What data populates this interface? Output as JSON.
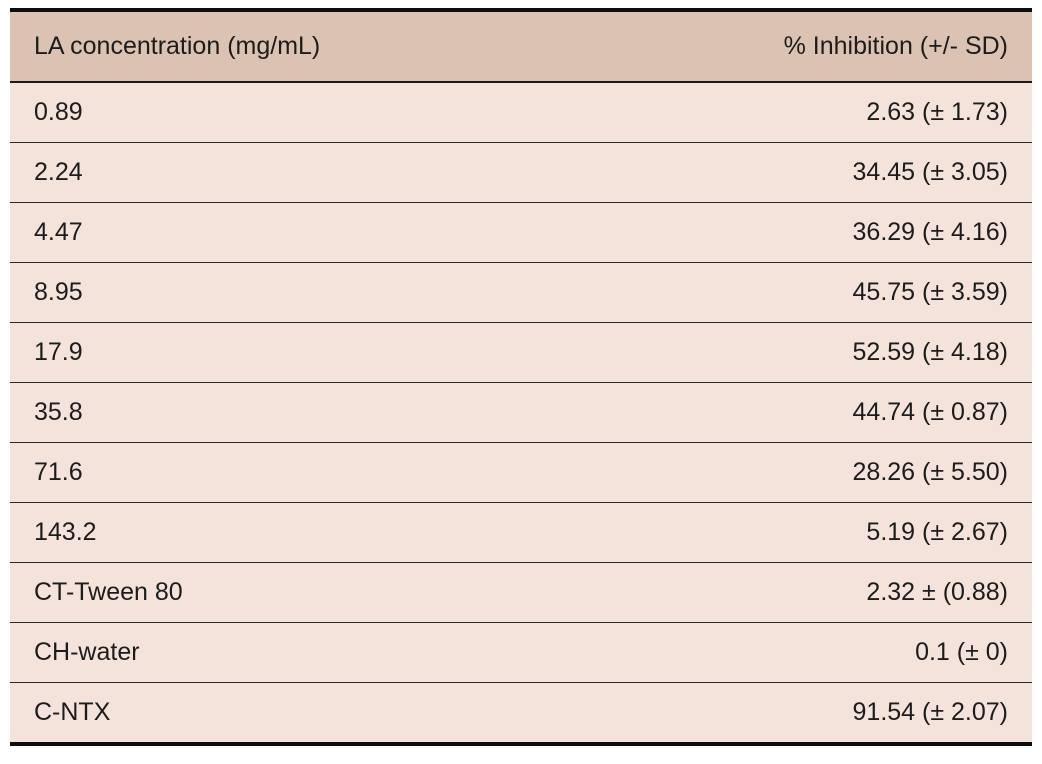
{
  "table": {
    "headers": [
      "LA concentration (mg/mL)",
      "% Inhibition (+/- SD)"
    ],
    "rows": [
      [
        "0.89",
        "2.63 (± 1.73)"
      ],
      [
        "2.24",
        "34.45 (± 3.05)"
      ],
      [
        "4.47",
        "36.29 (± 4.16)"
      ],
      [
        "8.95",
        "45.75 (± 3.59)"
      ],
      [
        "17.9",
        "52.59 (± 4.18)"
      ],
      [
        "35.8",
        "44.74 (± 0.87)"
      ],
      [
        "71.6",
        "28.26 (± 5.50)"
      ],
      [
        "143.2",
        "5.19 (± 2.67)"
      ],
      [
        "CT-Tween 80",
        "2.32 ± (0.88)"
      ],
      [
        "CH-water",
        "0.1 (± 0)"
      ],
      [
        "C-NTX",
        "91.54 (± 2.07)"
      ]
    ]
  },
  "colors": {
    "header_bg": "#dcc2b3",
    "row_bg": "#f4e3da",
    "border": "#0d0d0d",
    "row_divider": "#2a2a2a",
    "text": "#1c1c1c",
    "page_bg": "#ffffff"
  },
  "chart_data": {
    "type": "table",
    "columns": [
      "LA concentration (mg/mL)",
      "% Inhibition (+/- SD)"
    ],
    "categories": [
      "0.89",
      "2.24",
      "4.47",
      "8.95",
      "17.9",
      "35.8",
      "71.6",
      "143.2",
      "CT-Tween 80",
      "CH-water",
      "C-NTX"
    ],
    "series": [
      {
        "name": "% Inhibition",
        "values": [
          2.63,
          34.45,
          36.29,
          45.75,
          52.59,
          44.74,
          28.26,
          5.19,
          2.32,
          0.1,
          91.54
        ]
      },
      {
        "name": "SD",
        "values": [
          1.73,
          3.05,
          4.16,
          3.59,
          4.18,
          0.87,
          5.5,
          2.67,
          0.88,
          0,
          2.07
        ]
      }
    ]
  }
}
